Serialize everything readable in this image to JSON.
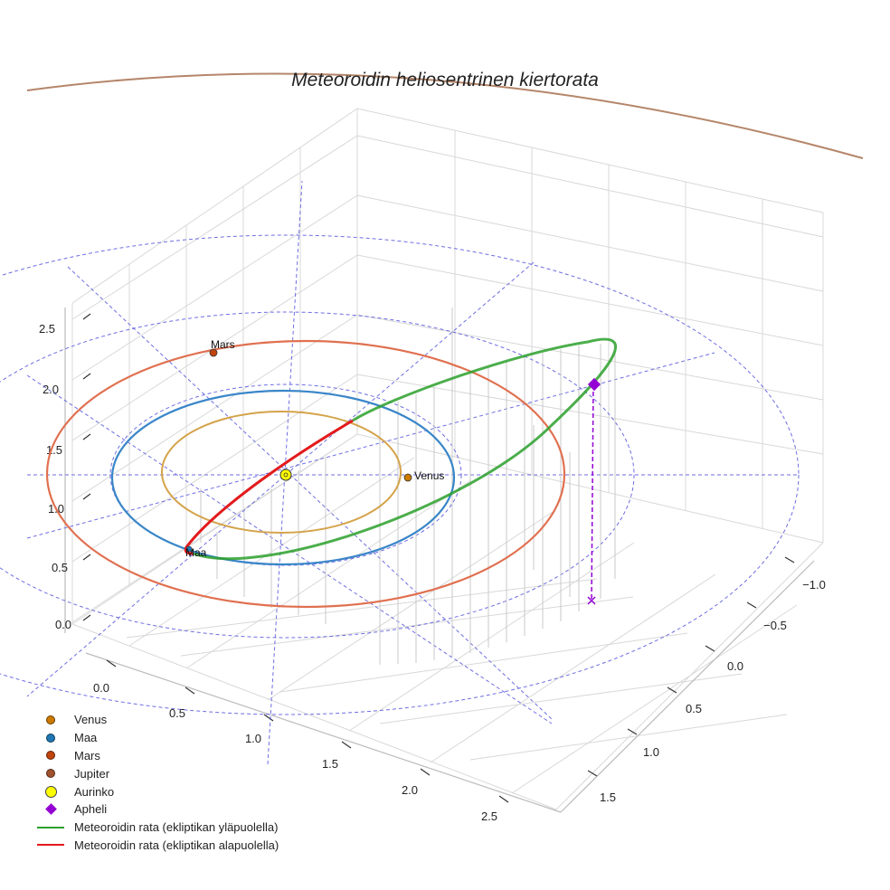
{
  "chart_data": {
    "type": "line",
    "title": "Meteoroidin heliosentrinen kiertorata",
    "x_ticks": [
      "0.0",
      "0.5",
      "1.0",
      "1.5",
      "2.0",
      "2.5"
    ],
    "y_ticks": [
      "−1.0",
      "−0.5",
      "0.0",
      "0.5",
      "1.0",
      "1.5"
    ],
    "z_ticks": [
      "0.0",
      "0.5",
      "1.0",
      "1.5",
      "2.0",
      "2.5"
    ],
    "planet_labels": [
      "Mars",
      "Venus",
      "Maa"
    ],
    "legend": [
      {
        "label": "Venus",
        "marker": "dot",
        "color": "#cc7a00"
      },
      {
        "label": "Maa",
        "marker": "dot",
        "color": "#1f77b4"
      },
      {
        "label": "Mars",
        "marker": "dot",
        "color": "#c1440e"
      },
      {
        "label": "Jupiter",
        "marker": "dot",
        "color": "#a0522d"
      },
      {
        "label": "Aurinko",
        "marker": "sun",
        "color": "#ffff00"
      },
      {
        "label": "Apheli",
        "marker": "diamond",
        "color": "#9400d3"
      },
      {
        "label": "Meteoroidin rata (ekliptikan yläpuolella)",
        "marker": "line",
        "color": "#2ca02c"
      },
      {
        "label": "Meteoroidin rata (ekliptikan alapuolella)",
        "marker": "line",
        "color": "#e31a1c"
      }
    ],
    "orbits": [
      {
        "name": "Venus",
        "radius_au": 0.72,
        "color": "#d4a34a"
      },
      {
        "name": "Maa",
        "radius_au": 1.0,
        "color": "#3a86c8"
      },
      {
        "name": "Mars",
        "radius_au": 1.52,
        "color": "#e07050"
      },
      {
        "name": "Jupiter",
        "radius_au": 5.2,
        "color": "#b5866a"
      }
    ],
    "meteoroid": {
      "perihelion_au": 1.0,
      "aphelion_au": 2.7,
      "colors": {
        "above": "#2ca02c",
        "below": "#e31a1c"
      }
    },
    "apheli_color": "#9400d3",
    "sun_color": "#ffff00",
    "grid": true
  }
}
